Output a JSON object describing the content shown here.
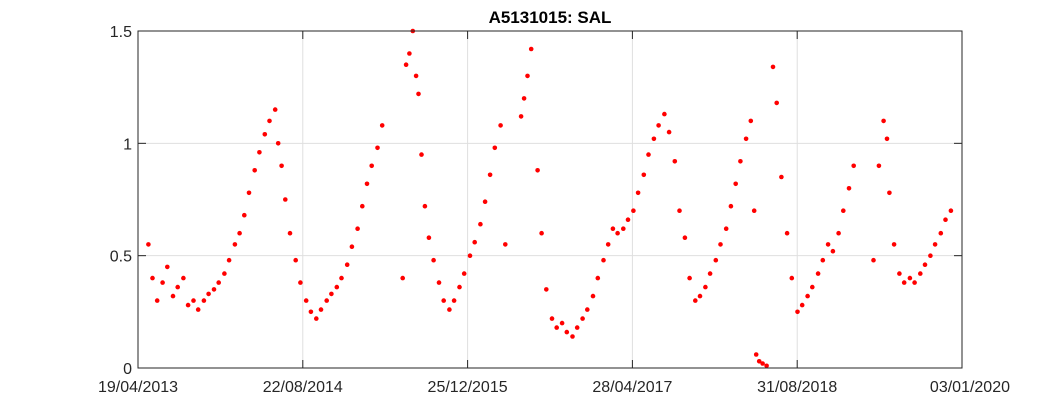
{
  "chart_data": {
    "type": "scatter",
    "title": "A5131015: SAL",
    "xlabel": "",
    "ylabel": "",
    "ylim": [
      0,
      1.5
    ],
    "yticks": [
      0,
      0.5,
      1,
      1.5
    ],
    "ytick_labels": [
      "0",
      "0.5",
      "1",
      "1.5"
    ],
    "x_ticks": [
      "19/04/2013",
      "22/08/2014",
      "25/12/2015",
      "28/04/2017",
      "31/08/2018",
      "03/01/2020"
    ],
    "grid": true,
    "marker_color": "#ff0000",
    "x_range": [
      "19/04/2013",
      "03/01/2020"
    ],
    "points": [
      [
        "2013-05-20",
        0.55
      ],
      [
        "2013-06-01",
        0.4
      ],
      [
        "2013-06-15",
        0.3
      ],
      [
        "2013-07-01",
        0.38
      ],
      [
        "2013-07-15",
        0.45
      ],
      [
        "2013-08-01",
        0.32
      ],
      [
        "2013-08-15",
        0.36
      ],
      [
        "2013-09-01",
        0.4
      ],
      [
        "2013-09-15",
        0.28
      ],
      [
        "2013-10-01",
        0.3
      ],
      [
        "2013-10-15",
        0.26
      ],
      [
        "2013-11-01",
        0.3
      ],
      [
        "2013-11-15",
        0.33
      ],
      [
        "2013-12-01",
        0.35
      ],
      [
        "2013-12-15",
        0.38
      ],
      [
        "2014-01-01",
        0.42
      ],
      [
        "2014-01-15",
        0.48
      ],
      [
        "2014-02-01",
        0.55
      ],
      [
        "2014-02-15",
        0.6
      ],
      [
        "2014-03-01",
        0.68
      ],
      [
        "2014-03-15",
        0.78
      ],
      [
        "2014-04-01",
        0.88
      ],
      [
        "2014-04-15",
        0.96
      ],
      [
        "2014-05-01",
        1.04
      ],
      [
        "2014-05-15",
        1.1
      ],
      [
        "2014-06-01",
        1.15
      ],
      [
        "2014-06-10",
        1.0
      ],
      [
        "2014-06-20",
        0.9
      ],
      [
        "2014-07-01",
        0.75
      ],
      [
        "2014-07-15",
        0.6
      ],
      [
        "2014-08-01",
        0.48
      ],
      [
        "2014-08-15",
        0.38
      ],
      [
        "2014-09-01",
        0.3
      ],
      [
        "2014-09-15",
        0.25
      ],
      [
        "2014-10-01",
        0.22
      ],
      [
        "2014-10-15",
        0.26
      ],
      [
        "2014-11-01",
        0.3
      ],
      [
        "2014-11-15",
        0.33
      ],
      [
        "2014-12-01",
        0.36
      ],
      [
        "2014-12-15",
        0.4
      ],
      [
        "2015-01-01",
        0.46
      ],
      [
        "2015-01-15",
        0.54
      ],
      [
        "2015-02-01",
        0.62
      ],
      [
        "2015-02-15",
        0.72
      ],
      [
        "2015-03-01",
        0.82
      ],
      [
        "2015-03-15",
        0.9
      ],
      [
        "2015-04-01",
        0.98
      ],
      [
        "2015-04-15",
        1.08
      ],
      [
        "2015-06-15",
        0.4
      ],
      [
        "2015-06-25",
        1.35
      ],
      [
        "2015-07-05",
        1.4
      ],
      [
        "2015-07-15",
        1.5
      ],
      [
        "2015-07-25",
        1.3
      ],
      [
        "2015-08-01",
        1.22
      ],
      [
        "2015-08-10",
        0.95
      ],
      [
        "2015-08-20",
        0.72
      ],
      [
        "2015-09-01",
        0.58
      ],
      [
        "2015-09-15",
        0.48
      ],
      [
        "2015-10-01",
        0.38
      ],
      [
        "2015-10-15",
        0.3
      ],
      [
        "2015-11-01",
        0.26
      ],
      [
        "2015-11-15",
        0.3
      ],
      [
        "2015-12-01",
        0.36
      ],
      [
        "2015-12-15",
        0.42
      ],
      [
        "2016-01-01",
        0.5
      ],
      [
        "2016-01-15",
        0.56
      ],
      [
        "2016-02-01",
        0.64
      ],
      [
        "2016-02-15",
        0.74
      ],
      [
        "2016-03-01",
        0.86
      ],
      [
        "2016-03-15",
        0.98
      ],
      [
        "2016-04-01",
        1.08
      ],
      [
        "2016-04-15",
        0.55
      ],
      [
        "2016-06-01",
        1.12
      ],
      [
        "2016-06-10",
        1.2
      ],
      [
        "2016-06-20",
        1.3
      ],
      [
        "2016-07-01",
        1.42
      ],
      [
        "2016-07-20",
        0.88
      ],
      [
        "2016-08-01",
        0.6
      ],
      [
        "2016-08-15",
        0.35
      ],
      [
        "2016-09-01",
        0.22
      ],
      [
        "2016-09-15",
        0.18
      ],
      [
        "2016-10-01",
        0.2
      ],
      [
        "2016-10-15",
        0.16
      ],
      [
        "2016-11-01",
        0.14
      ],
      [
        "2016-11-15",
        0.18
      ],
      [
        "2016-12-01",
        0.22
      ],
      [
        "2016-12-15",
        0.26
      ],
      [
        "2017-01-01",
        0.32
      ],
      [
        "2017-01-15",
        0.4
      ],
      [
        "2017-02-01",
        0.48
      ],
      [
        "2017-02-15",
        0.55
      ],
      [
        "2017-03-01",
        0.62
      ],
      [
        "2017-03-15",
        0.6
      ],
      [
        "2017-04-01",
        0.62
      ],
      [
        "2017-04-15",
        0.66
      ],
      [
        "2017-05-01",
        0.7
      ],
      [
        "2017-05-15",
        0.78
      ],
      [
        "2017-06-01",
        0.86
      ],
      [
        "2017-06-15",
        0.95
      ],
      [
        "2017-07-01",
        1.02
      ],
      [
        "2017-07-15",
        1.08
      ],
      [
        "2017-08-01",
        1.13
      ],
      [
        "2017-08-15",
        1.05
      ],
      [
        "2017-09-01",
        0.92
      ],
      [
        "2017-09-15",
        0.7
      ],
      [
        "2017-10-01",
        0.58
      ],
      [
        "2017-10-15",
        0.4
      ],
      [
        "2017-11-01",
        0.3
      ],
      [
        "2017-11-15",
        0.32
      ],
      [
        "2017-12-01",
        0.36
      ],
      [
        "2017-12-15",
        0.42
      ],
      [
        "2018-01-01",
        0.48
      ],
      [
        "2018-01-15",
        0.55
      ],
      [
        "2018-02-01",
        0.62
      ],
      [
        "2018-02-15",
        0.72
      ],
      [
        "2018-03-01",
        0.82
      ],
      [
        "2018-03-15",
        0.92
      ],
      [
        "2018-04-01",
        1.02
      ],
      [
        "2018-04-15",
        1.1
      ],
      [
        "2018-04-25",
        0.7
      ],
      [
        "2018-05-01",
        0.06
      ],
      [
        "2018-05-10",
        0.03
      ],
      [
        "2018-05-20",
        0.02
      ],
      [
        "2018-06-01",
        0.01
      ],
      [
        "2018-06-20",
        1.34
      ],
      [
        "2018-07-01",
        1.18
      ],
      [
        "2018-07-15",
        0.85
      ],
      [
        "2018-08-01",
        0.6
      ],
      [
        "2018-08-15",
        0.4
      ],
      [
        "2018-09-01",
        0.25
      ],
      [
        "2018-09-15",
        0.28
      ],
      [
        "2018-10-01",
        0.32
      ],
      [
        "2018-10-15",
        0.36
      ],
      [
        "2018-11-01",
        0.42
      ],
      [
        "2018-11-15",
        0.48
      ],
      [
        "2018-12-01",
        0.55
      ],
      [
        "2018-12-15",
        0.52
      ],
      [
        "2019-01-01",
        0.6
      ],
      [
        "2019-01-15",
        0.7
      ],
      [
        "2019-02-01",
        0.8
      ],
      [
        "2019-02-15",
        0.9
      ],
      [
        "2019-04-15",
        0.48
      ],
      [
        "2019-05-01",
        0.9
      ],
      [
        "2019-05-15",
        1.1
      ],
      [
        "2019-05-25",
        1.02
      ],
      [
        "2019-06-01",
        0.78
      ],
      [
        "2019-06-15",
        0.55
      ],
      [
        "2019-07-01",
        0.42
      ],
      [
        "2019-07-15",
        0.38
      ],
      [
        "2019-08-01",
        0.4
      ],
      [
        "2019-08-15",
        0.38
      ],
      [
        "2019-09-01",
        0.42
      ],
      [
        "2019-09-15",
        0.46
      ],
      [
        "2019-10-01",
        0.5
      ],
      [
        "2019-10-15",
        0.55
      ],
      [
        "2019-11-01",
        0.6
      ],
      [
        "2019-11-15",
        0.66
      ],
      [
        "2019-12-01",
        0.7
      ]
    ]
  }
}
